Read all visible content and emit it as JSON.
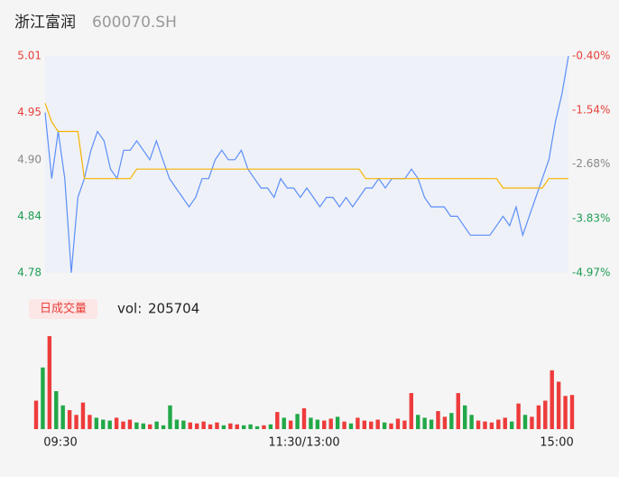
{
  "header": {
    "name": "浙江富润",
    "code": "600070.SH"
  },
  "chart_data": [
    {
      "type": "line",
      "x": [
        0,
        3,
        6,
        9,
        12,
        15,
        18,
        21,
        24,
        27,
        30,
        33,
        36,
        39,
        42,
        45,
        48,
        51,
        54,
        57,
        60,
        63,
        66,
        69,
        72,
        75,
        78,
        81,
        84,
        87,
        90,
        93,
        96,
        99,
        102,
        105,
        108,
        111,
        114,
        117,
        120,
        123,
        126,
        129,
        132,
        135,
        138,
        141,
        144,
        147,
        150,
        153,
        156,
        159,
        162,
        165,
        168,
        171,
        174,
        177,
        180,
        183,
        186,
        189,
        192,
        195,
        198,
        201,
        204,
        207,
        210,
        213,
        216,
        219,
        222,
        225,
        228,
        231,
        234,
        237,
        240
      ],
      "xlim": [
        0,
        240
      ],
      "series": [
        {
          "name": "price",
          "color": "#5b8ff9",
          "values": [
            4.95,
            4.88,
            4.93,
            4.88,
            4.78,
            4.86,
            4.88,
            4.91,
            4.93,
            4.92,
            4.89,
            4.88,
            4.91,
            4.91,
            4.92,
            4.91,
            4.9,
            4.92,
            4.9,
            4.88,
            4.87,
            4.86,
            4.85,
            4.86,
            4.88,
            4.88,
            4.9,
            4.91,
            4.9,
            4.9,
            4.91,
            4.89,
            4.88,
            4.87,
            4.87,
            4.86,
            4.88,
            4.87,
            4.87,
            4.86,
            4.87,
            4.86,
            4.85,
            4.86,
            4.86,
            4.85,
            4.86,
            4.85,
            4.86,
            4.87,
            4.87,
            4.88,
            4.87,
            4.88,
            4.88,
            4.88,
            4.89,
            4.88,
            4.86,
            4.85,
            4.85,
            4.85,
            4.84,
            4.84,
            4.83,
            4.82,
            4.82,
            4.82,
            4.82,
            4.83,
            4.84,
            4.83,
            4.85,
            4.82,
            4.84,
            4.86,
            4.88,
            4.9,
            4.94,
            4.97,
            5.01
          ]
        },
        {
          "name": "average",
          "color": "#f5b400",
          "values": [
            4.96,
            4.94,
            4.93,
            4.93,
            4.93,
            4.93,
            4.88,
            4.88,
            4.88,
            4.88,
            4.88,
            4.88,
            4.88,
            4.88,
            4.89,
            4.89,
            4.89,
            4.89,
            4.89,
            4.89,
            4.89,
            4.89,
            4.89,
            4.89,
            4.89,
            4.89,
            4.89,
            4.89,
            4.89,
            4.89,
            4.89,
            4.89,
            4.89,
            4.89,
            4.89,
            4.89,
            4.89,
            4.89,
            4.89,
            4.89,
            4.89,
            4.89,
            4.89,
            4.89,
            4.89,
            4.89,
            4.89,
            4.89,
            4.89,
            4.88,
            4.88,
            4.88,
            4.88,
            4.88,
            4.88,
            4.88,
            4.88,
            4.88,
            4.88,
            4.88,
            4.88,
            4.88,
            4.88,
            4.88,
            4.88,
            4.88,
            4.88,
            4.88,
            4.88,
            4.88,
            4.87,
            4.87,
            4.87,
            4.87,
            4.87,
            4.87,
            4.87,
            4.88,
            4.88,
            4.88,
            4.88
          ]
        }
      ],
      "ylim": [
        4.78,
        5.01
      ],
      "yticks": [
        5.01,
        4.95,
        {
          "value": 4.9,
          "label": "4.90"
        },
        4.84,
        4.78
      ],
      "ytick_colors": [
        "#e8413c",
        "#e8413c",
        "#888888",
        "#1f9d55",
        "#1f9d55"
      ],
      "y2lim": [
        -4.97,
        -0.4
      ],
      "y2ticks": [
        {
          "value": -0.4,
          "label": "-0.40%"
        },
        {
          "value": -1.54,
          "label": "-1.54%"
        },
        {
          "value": -2.68,
          "label": "-2.68%"
        },
        {
          "value": -3.83,
          "label": "-3.83%"
        },
        {
          "value": -4.97,
          "label": "-4.97%"
        }
      ],
      "y2tick_colors": [
        "#e8413c",
        "#e8413c",
        "#888888",
        "#1f9d55",
        "#1f9d55"
      ]
    },
    {
      "type": "bar",
      "title": "日成交量",
      "volume_label": "vol:",
      "total_volume": 205704,
      "up_color": "#ee3b3b",
      "down_color": "#22a848",
      "xlim": [
        0,
        240
      ],
      "ylim": [
        0,
        10000
      ],
      "xticks": [
        {
          "value": 0,
          "label": "09:30"
        },
        {
          "value": 120,
          "label": "11:30/13:00"
        },
        {
          "value": 240,
          "label": "15:00"
        }
      ],
      "values": [
        3000,
        6500,
        9800,
        4000,
        2500,
        2000,
        1500,
        2800,
        1500,
        1200,
        1000,
        900,
        1200,
        800,
        1000,
        700,
        600,
        500,
        800,
        400,
        2500,
        1000,
        900,
        700,
        600,
        800,
        500,
        700,
        400,
        600,
        500,
        400,
        500,
        300,
        400,
        500,
        1800,
        1200,
        900,
        1600,
        2200,
        1200,
        1000,
        900,
        1100,
        1300,
        800,
        600,
        1200,
        900,
        800,
        1000,
        700,
        600,
        1100,
        900,
        3800,
        1500,
        1200,
        1000,
        1900,
        1300,
        1700,
        3800,
        2500,
        1500,
        900,
        800,
        700,
        1000,
        1200,
        800,
        2700,
        1500,
        1300,
        2500,
        3000,
        6200,
        5000,
        3500,
        3600
      ]
    }
  ]
}
